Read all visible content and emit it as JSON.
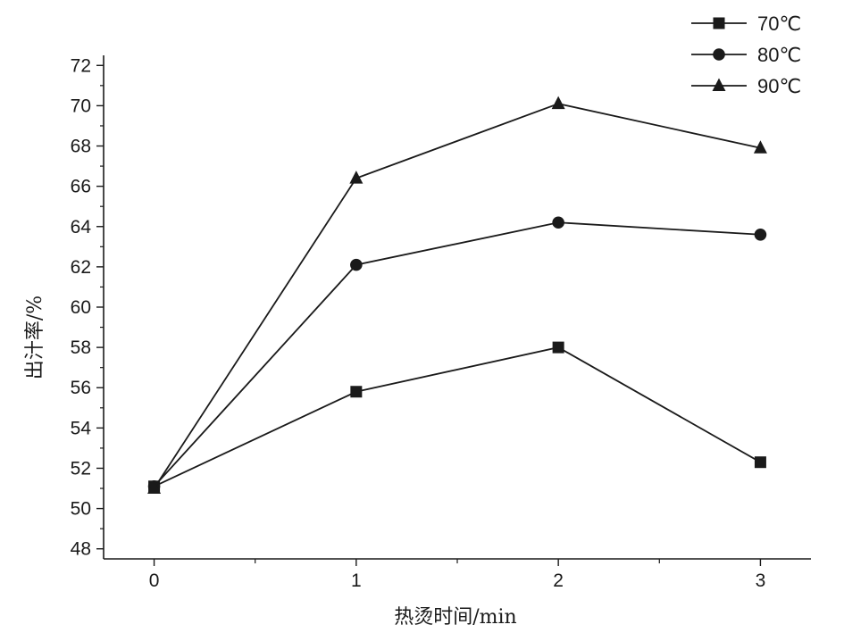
{
  "chart_data": {
    "type": "line",
    "title": "",
    "xlabel": "热烫时间/min",
    "ylabel": "出汁率/%",
    "x": [
      0,
      1,
      2,
      3
    ],
    "x_ticks": [
      "0",
      "1",
      "2",
      "3"
    ],
    "xlim": [
      -0.25,
      3.25
    ],
    "ylim": [
      47.5,
      72.5
    ],
    "y_ticks": [
      "48",
      "50",
      "52",
      "54",
      "56",
      "58",
      "60",
      "62",
      "64",
      "66",
      "68",
      "70",
      "72"
    ],
    "grid": false,
    "legend_position": "top-right",
    "series": [
      {
        "name": "70℃",
        "marker": "square",
        "values": [
          51.1,
          55.8,
          58.0,
          52.3
        ]
      },
      {
        "name": "80℃",
        "marker": "circle",
        "values": [
          51.1,
          62.1,
          64.2,
          63.6
        ]
      },
      {
        "name": "90℃",
        "marker": "triangle",
        "values": [
          51.0,
          66.4,
          70.1,
          67.9
        ]
      }
    ],
    "colors": {
      "line": "#1a1a1a",
      "marker": "#1a1a1a",
      "axis": "#1a1a1a"
    }
  }
}
